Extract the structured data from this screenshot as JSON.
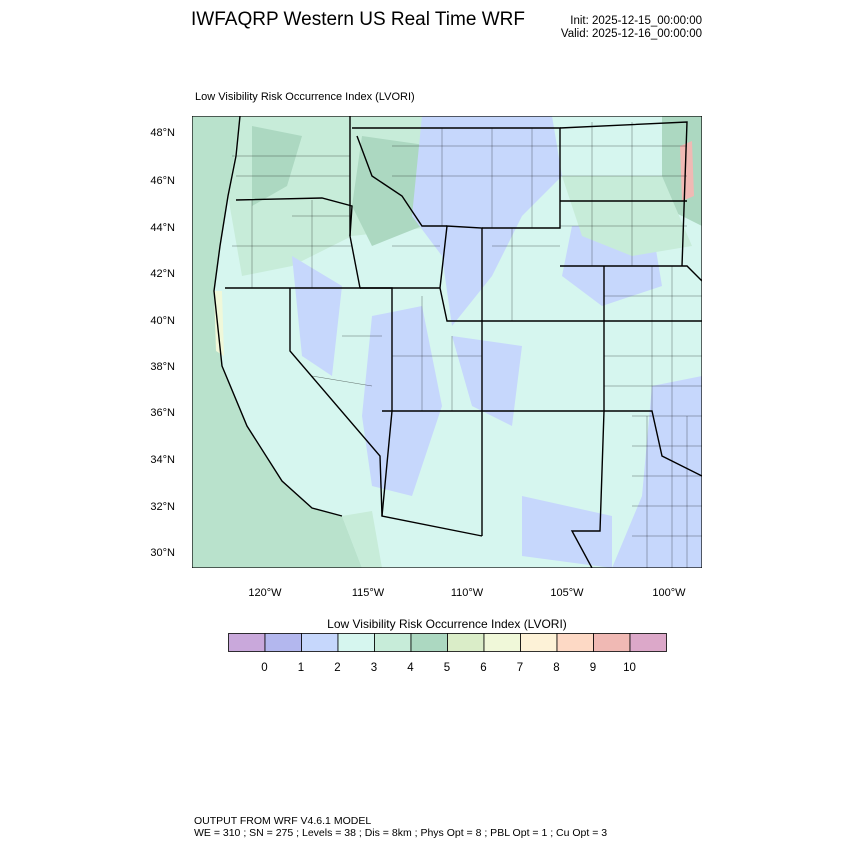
{
  "header": {
    "title": "IWFAQRP Western US Real Time WRF",
    "init": "Init: 2025-12-15_00:00:00",
    "valid": "Valid: 2025-12-16_00:00:00"
  },
  "map": {
    "subtitle": "Low Visibility Risk Occurrence Index   (LVORI)",
    "lat_ticks": [
      "48°N",
      "46°N",
      "44°N",
      "42°N",
      "40°N",
      "38°N",
      "36°N",
      "34°N",
      "32°N",
      "30°N"
    ],
    "lon_ticks": [
      "120°W",
      "115°W",
      "110°W",
      "105°W",
      "100°W"
    ]
  },
  "colorbar": {
    "title": "Low Visibility Risk Occurrence Index  (LVORI)",
    "levels": [
      "0",
      "1",
      "2",
      "3",
      "4",
      "5",
      "6",
      "7",
      "8",
      "9",
      "10"
    ],
    "colors": [
      "#c9a8db",
      "#b3b7ee",
      "#c6d7fc",
      "#d6f6ef",
      "#c7ecd9",
      "#acd8c1",
      "#daedc8",
      "#f0f8d9",
      "#fdf2d7",
      "#fdd9c5",
      "#f0b9b4",
      "#dca8c9"
    ]
  },
  "footer": {
    "line1": "OUTPUT FROM WRF V4.6.1 MODEL",
    "line2": "WE = 310 ; SN = 275 ; Levels = 38 ; Dis = 8km ; Phys Opt = 8 ; PBL Opt = 1 ; Cu Opt = 3"
  }
}
